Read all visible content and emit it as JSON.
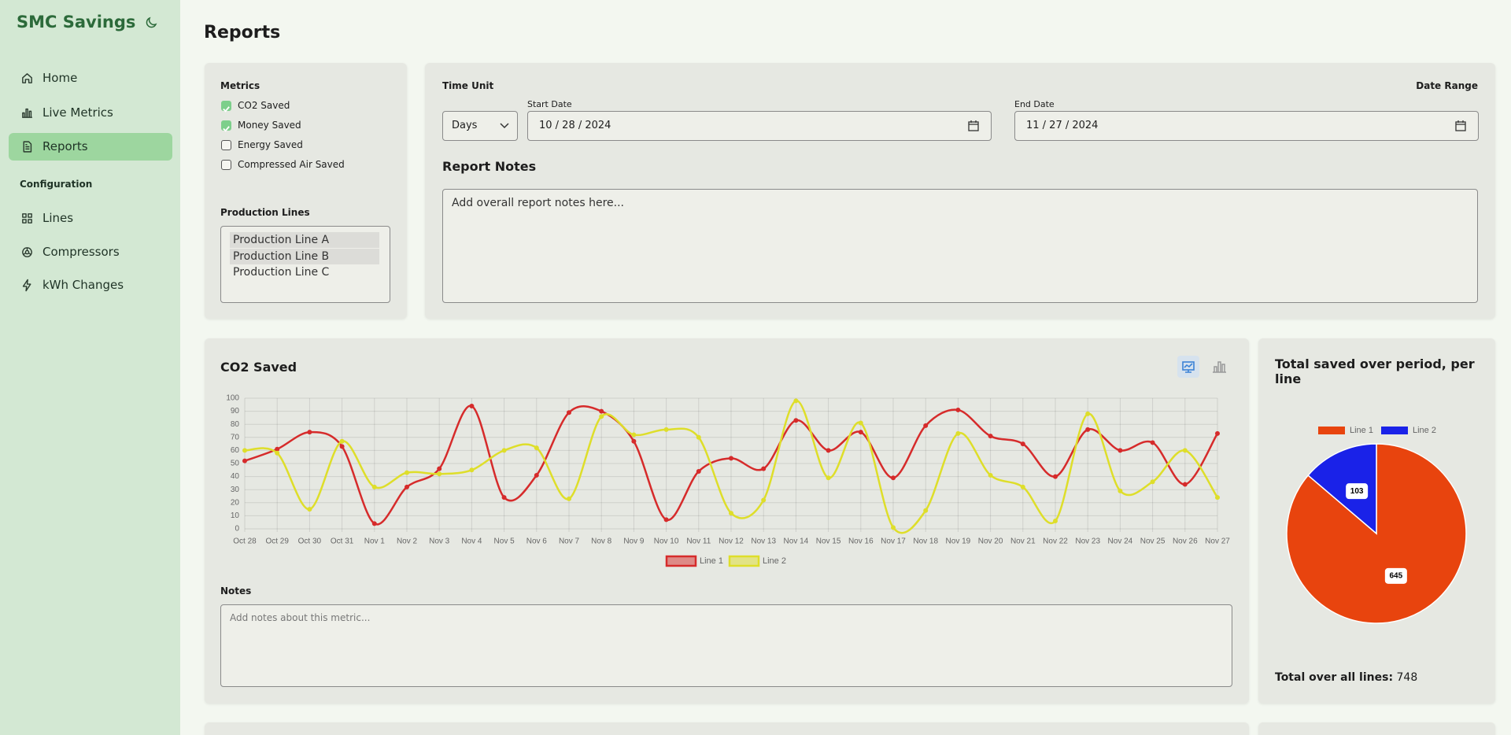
{
  "sidebar": {
    "brand": "SMC Savings",
    "nav": [
      {
        "label": "Home",
        "active": false
      },
      {
        "label": "Live Metrics",
        "active": false
      },
      {
        "label": "Reports",
        "active": true
      }
    ],
    "section": "Configuration",
    "config_nav": [
      {
        "label": "Lines"
      },
      {
        "label": "Compressors"
      },
      {
        "label": "kWh Changes"
      }
    ]
  },
  "page_title": "Reports",
  "filters": {
    "metrics_label": "Metrics",
    "metrics": [
      {
        "label": "CO2 Saved",
        "checked": true
      },
      {
        "label": "Money Saved",
        "checked": true
      },
      {
        "label": "Energy Saved",
        "checked": false
      },
      {
        "label": "Compressed Air Saved",
        "checked": false
      }
    ],
    "lines_label": "Production Lines",
    "lines": [
      {
        "label": "Production Line A",
        "selected": true
      },
      {
        "label": "Production Line B",
        "selected": true
      },
      {
        "label": "Production Line C",
        "selected": false
      }
    ]
  },
  "report": {
    "time_unit_label": "Time Unit",
    "time_unit": "Days",
    "date_range_label": "Date Range",
    "start_label": "Start Date",
    "start_date": "10 / 28 / 2024",
    "end_label": "End Date",
    "end_date": "11 / 27 / 2024",
    "notes_title": "Report Notes",
    "notes_placeholder": "Add overall report notes here..."
  },
  "metric_card": {
    "notes_label": "Notes",
    "notes_placeholder": "Add notes about this metric..."
  },
  "total": {
    "label": "Total over all lines:",
    "value": 748
  },
  "chart_data": [
    {
      "type": "line",
      "title": "CO2 Saved",
      "categories": [
        "Oct 28",
        "Oct 29",
        "Oct 30",
        "Oct 31",
        "Nov 1",
        "Nov 2",
        "Nov 3",
        "Nov 4",
        "Nov 5",
        "Nov 6",
        "Nov 7",
        "Nov 8",
        "Nov 9",
        "Nov 10",
        "Nov 11",
        "Nov 12",
        "Nov 13",
        "Nov 14",
        "Nov 15",
        "Nov 16",
        "Nov 17",
        "Nov 18",
        "Nov 19",
        "Nov 20",
        "Nov 21",
        "Nov 22",
        "Nov 23",
        "Nov 24",
        "Nov 25",
        "Nov 26",
        "Nov 27"
      ],
      "series": [
        {
          "name": "Line 1",
          "color": "#d62b2b",
          "values": [
            52,
            61,
            74,
            63,
            4,
            32,
            46,
            94,
            24,
            41,
            89,
            90,
            67,
            7,
            44,
            54,
            46,
            83,
            60,
            74,
            39,
            79,
            91,
            71,
            65,
            40,
            76,
            60,
            66,
            34,
            73
          ]
        },
        {
          "name": "Line 2",
          "color": "#dede2a",
          "values": [
            60,
            58,
            15,
            67,
            32,
            43,
            42,
            45,
            60,
            62,
            23,
            86,
            72,
            76,
            70,
            12,
            22,
            98,
            39,
            81,
            1,
            14,
            73,
            41,
            32,
            6,
            88,
            29,
            36,
            60,
            24
          ]
        }
      ],
      "ylim": [
        0,
        100
      ],
      "yticks": [
        0,
        10,
        20,
        30,
        40,
        50,
        60,
        70,
        80,
        90,
        100
      ],
      "grid": true,
      "legend": "bottom"
    },
    {
      "type": "pie",
      "title": "Total saved over period, per line",
      "categories": [
        "Line 1",
        "Line 2"
      ],
      "values": [
        645,
        103
      ],
      "colors": [
        "#e8440e",
        "#1a22e8"
      ],
      "legend": "top"
    }
  ]
}
